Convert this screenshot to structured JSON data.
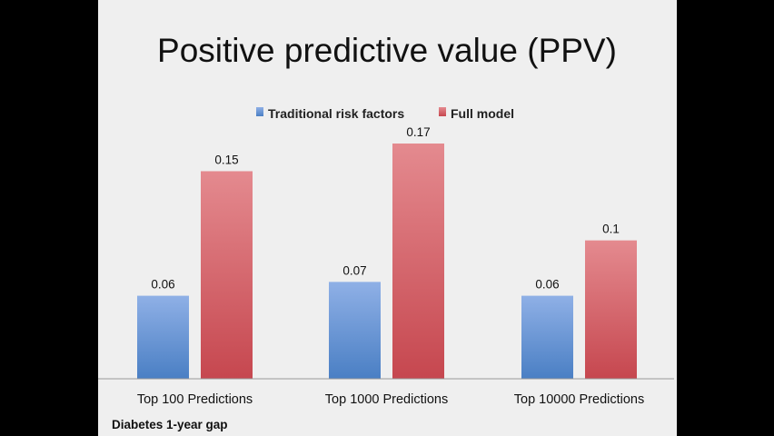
{
  "footnote": "Diabetes 1-year gap",
  "colors": {
    "background": "#000000",
    "slide": "#efefef",
    "traditional_top": "#8fb0e6",
    "traditional_bottom": "#4a7fc4",
    "full_top": "#e48a8f",
    "full_bottom": "#c6474f",
    "axis": "#999999"
  },
  "chart_data": {
    "type": "bar",
    "title": "Positive predictive value (PPV)",
    "categories": [
      "Top 100 Predictions",
      "Top 1000 Predictions",
      "Top 10000 Predictions"
    ],
    "series": [
      {
        "name": "Traditional risk factors",
        "values": [
          0.06,
          0.07,
          0.06
        ],
        "labels": [
          "0.06",
          "0.07",
          "0.06"
        ]
      },
      {
        "name": "Full model",
        "values": [
          0.15,
          0.17,
          0.1
        ],
        "labels": [
          "0.15",
          "0.17",
          "0.1"
        ]
      }
    ],
    "ylim": [
      0,
      0.17
    ],
    "grid": false,
    "legend": "top-center",
    "data_labels": true
  }
}
